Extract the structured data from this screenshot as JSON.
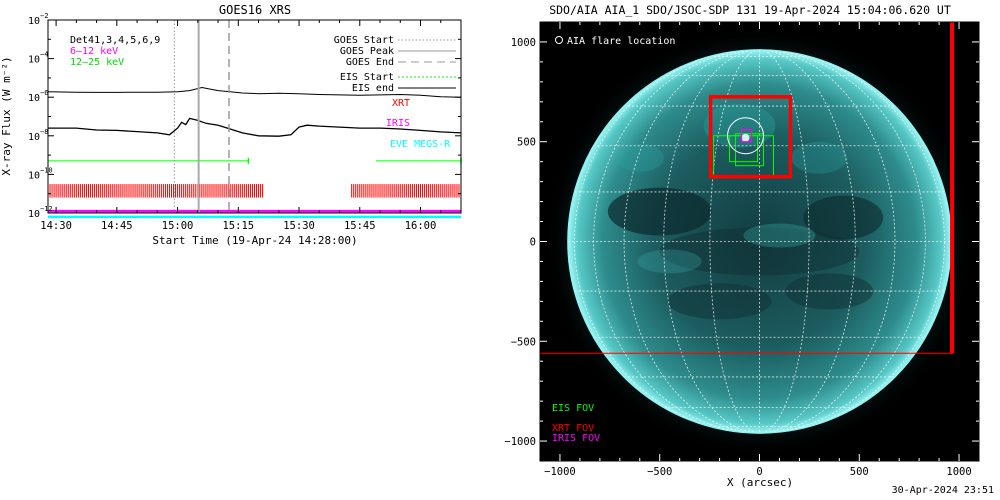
{
  "colors": {
    "ch_6_12": "#ff00ff",
    "ch_12_25": "#00dd00",
    "eis": "#00ff00",
    "xrt": "#ff0000",
    "iris": "#ff00ff",
    "eve": "#00ffff",
    "aia_bg": "#000000",
    "aia_disk": "#1f6f70",
    "aia_limb": "#8ff4f2"
  },
  "footer": {
    "timestamp": "30-Apr-2024 23:51"
  },
  "chart_data": [
    {
      "type": "line",
      "title": "GOES16 XRS",
      "ylabel": "X-ray Flux (W m⁻²)",
      "xlabel": "Start Time (19-Apr-24 14:28:00)",
      "y_scale": "log",
      "ylim_exp": [
        -12,
        -2
      ],
      "y_ticks": [
        {
          "exp": -2,
          "label": "10"
        },
        {
          "exp": -4,
          "label": "10"
        },
        {
          "exp": -6,
          "label": "10"
        },
        {
          "exp": -8,
          "label": "10"
        },
        {
          "exp": -10,
          "label": "10"
        },
        {
          "exp": -12,
          "label": "10"
        }
      ],
      "xlim_minutes": [
        -2,
        100
      ],
      "x_ticks": [
        {
          "t": 0,
          "label": "14:30"
        },
        {
          "t": 15,
          "label": "14:45"
        },
        {
          "t": 30,
          "label": "15:00"
        },
        {
          "t": 45,
          "label": "15:15"
        },
        {
          "t": 60,
          "label": "15:30"
        },
        {
          "t": 75,
          "label": "15:45"
        },
        {
          "t": 90,
          "label": "16:00"
        }
      ],
      "detectors_label": "Det41,3,4,5,6,9",
      "channels": [
        "6–12 keV",
        "12–25 keV"
      ],
      "series": [
        {
          "name": "GOES long channel",
          "t": [
            -2,
            5,
            10,
            15,
            20,
            25,
            30,
            33,
            36,
            40,
            43,
            46,
            50,
            55,
            60,
            65,
            70,
            75,
            80,
            85,
            90,
            95,
            100
          ],
          "flux_exp": [
            -5.72,
            -5.74,
            -5.75,
            -5.75,
            -5.74,
            -5.74,
            -5.72,
            -5.66,
            -5.5,
            -5.66,
            -5.72,
            -5.78,
            -5.82,
            -5.8,
            -5.82,
            -5.86,
            -5.88,
            -5.9,
            -5.88,
            -5.86,
            -5.9,
            -5.98,
            -6.0
          ]
        },
        {
          "name": "GOES short channel",
          "t": [
            -2,
            5,
            10,
            15,
            20,
            25,
            28,
            30,
            31,
            32,
            33,
            35,
            37,
            40,
            43,
            46,
            50,
            55,
            58,
            60,
            62,
            65,
            70,
            75,
            80,
            85,
            90,
            95,
            100
          ],
          "flux_exp": [
            -7.6,
            -7.6,
            -7.7,
            -7.72,
            -7.78,
            -7.85,
            -7.95,
            -7.6,
            -7.3,
            -7.42,
            -7.1,
            -7.2,
            -7.35,
            -7.45,
            -7.65,
            -7.85,
            -8.0,
            -8.02,
            -7.95,
            -7.55,
            -7.45,
            -7.5,
            -7.55,
            -7.6,
            -7.6,
            -7.65,
            -7.72,
            -7.8,
            -7.85
          ]
        }
      ],
      "goes_start": 29.2,
      "goes_peak": 35.2,
      "goes_end": 42.7,
      "legend_goes": [
        "GOES Start",
        "GOES Peak",
        "GOES End"
      ],
      "legend_eis": [
        "EIS Start",
        "EIS end"
      ],
      "legend_instruments": [
        "XRT",
        "IRIS",
        "EVE MEGS-R"
      ],
      "eis_intervals": [
        [
          -2,
          47.5
        ],
        [
          79,
          100
        ]
      ],
      "eis_level_exp": -9.3,
      "xrt_ticks": {
        "level_top_exp": -10.5,
        "level_bottom_exp": -11.2,
        "intervals": [
          [
            -2,
            51
          ],
          [
            73,
            100
          ]
        ],
        "step_minutes": 0.5
      },
      "iris_level_exp": -11.9,
      "eve_level_exp": -12.2
    },
    {
      "type": "scatter",
      "title": "SDO/AIA AIA_1 SDO/JSOC-SDP 131 19-Apr-2024 15:04:06.620 UT",
      "xlabel": "X (arcsec)",
      "xlim": [
        -1100,
        1100
      ],
      "ylim": [
        -1100,
        1100
      ],
      "x_ticks": [
        {
          "v": -1000,
          "label": "−1000"
        },
        {
          "v": -500,
          "label": "−500"
        },
        {
          "v": 0,
          "label": "0"
        },
        {
          "v": 500,
          "label": "500"
        },
        {
          "v": 1000,
          "label": "1000"
        }
      ],
      "y_ticks": [
        {
          "v": 1000,
          "label": "1000"
        },
        {
          "v": 500,
          "label": "500"
        },
        {
          "v": 0,
          "label": "0"
        },
        {
          "v": -500,
          "label": "−500"
        },
        {
          "v": -1000,
          "label": "−1000"
        }
      ],
      "solar_radius": 960,
      "flare_location_label": "AIA flare location",
      "flare_location": {
        "x": -70,
        "y": 530,
        "r": 90
      },
      "flare_spot": {
        "x": -70,
        "y": 520
      },
      "eis_fov": [
        {
          "x0": -230,
          "x1": 70,
          "y0": 330,
          "y1": 530
        },
        {
          "x0": -150,
          "x1": -10,
          "y0": 400,
          "y1": 530
        },
        {
          "x0": -120,
          "x1": 20,
          "y0": 380,
          "y1": 540
        }
      ],
      "xrt_fov": {
        "x0": -245,
        "x1": 155,
        "y0": 325,
        "y1": 725
      },
      "xrt_big_fov": {
        "x0": -1110,
        "x1": 965,
        "y0": -560,
        "y1": 1110
      },
      "iris_fov": {
        "x0": -90,
        "x1": -40,
        "y0": 500,
        "y1": 560
      },
      "legend": [
        "EIS FOV",
        "XRT FOV",
        "IRIS FOV"
      ]
    }
  ]
}
